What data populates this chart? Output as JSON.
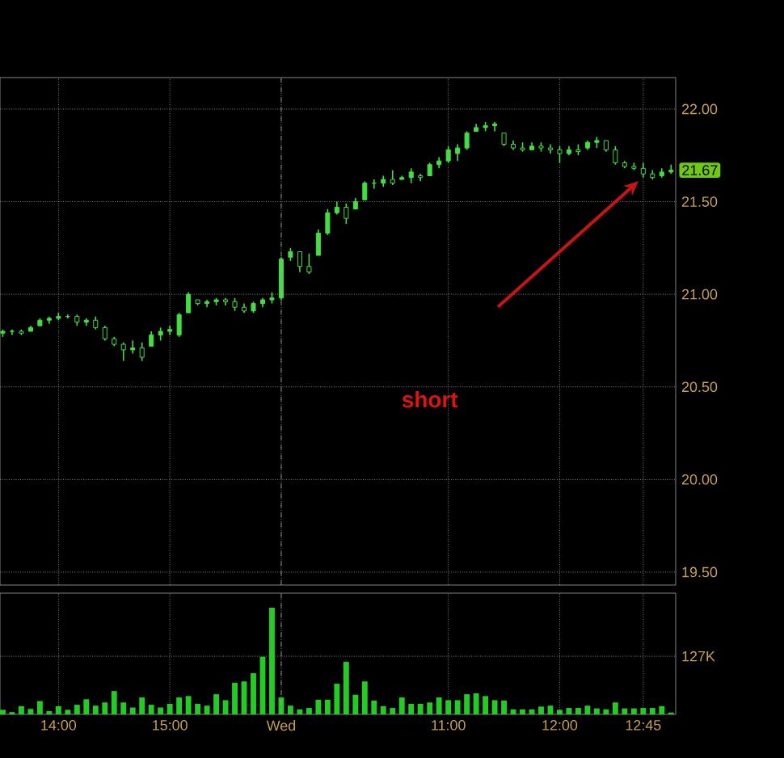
{
  "chart_data": [
    {
      "type": "candlestick",
      "color": "#44dd44",
      "categories": [
        null,
        null,
        null,
        null,
        null,
        null,
        "14:00",
        null,
        null,
        null,
        null,
        null,
        null,
        null,
        null,
        null,
        null,
        null,
        "15:00",
        null,
        null,
        null,
        null,
        null,
        null,
        null,
        null,
        null,
        null,
        null,
        "Wed",
        null,
        null,
        null,
        null,
        null,
        null,
        null,
        null,
        null,
        null,
        null,
        null,
        null,
        null,
        null,
        null,
        null,
        "11:00",
        null,
        null,
        null,
        null,
        null,
        null,
        null,
        null,
        null,
        null,
        null,
        "12:00",
        null,
        null,
        null,
        null,
        null,
        null,
        null,
        null,
        "12:45",
        null,
        null,
        null
      ],
      "ohlc": [
        [
          20.79,
          20.81,
          20.77,
          20.8
        ],
        [
          20.8,
          20.81,
          20.78,
          20.8
        ],
        [
          20.8,
          20.81,
          20.78,
          20.79
        ],
        [
          20.8,
          20.83,
          20.8,
          20.82
        ],
        [
          20.83,
          20.87,
          20.83,
          20.86
        ],
        [
          20.86,
          20.88,
          20.84,
          20.87
        ],
        [
          20.87,
          20.9,
          20.86,
          20.88
        ],
        [
          20.88,
          20.89,
          20.87,
          20.88
        ],
        [
          20.88,
          20.89,
          20.83,
          20.85
        ],
        [
          20.85,
          20.87,
          20.83,
          20.86
        ],
        [
          20.86,
          20.88,
          20.81,
          20.82
        ],
        [
          20.82,
          20.83,
          20.75,
          20.76
        ],
        [
          20.76,
          20.77,
          20.72,
          20.73
        ],
        [
          20.73,
          20.74,
          20.64,
          20.7
        ],
        [
          20.7,
          20.75,
          20.68,
          20.71
        ],
        [
          20.71,
          20.74,
          20.64,
          20.66
        ],
        [
          20.72,
          20.8,
          20.72,
          20.78
        ],
        [
          20.78,
          20.82,
          20.75,
          20.8
        ],
        [
          20.8,
          20.83,
          20.78,
          20.81
        ],
        [
          20.78,
          20.9,
          20.77,
          20.89
        ],
        [
          20.9,
          21.01,
          20.9,
          21.0
        ],
        [
          20.97,
          20.97,
          20.94,
          20.95
        ],
        [
          20.95,
          20.97,
          20.93,
          20.96
        ],
        [
          20.96,
          20.98,
          20.94,
          20.97
        ],
        [
          20.97,
          20.98,
          20.94,
          20.96
        ],
        [
          20.96,
          20.98,
          20.91,
          20.93
        ],
        [
          20.93,
          20.95,
          20.9,
          20.91
        ],
        [
          20.91,
          20.96,
          20.9,
          20.95
        ],
        [
          20.95,
          20.98,
          20.93,
          20.97
        ],
        [
          20.97,
          21.01,
          20.95,
          20.98
        ],
        [
          20.98,
          21.2,
          20.97,
          21.19
        ],
        [
          21.2,
          21.25,
          21.18,
          21.23
        ],
        [
          21.23,
          21.23,
          21.12,
          21.15
        ],
        [
          21.15,
          21.22,
          21.11,
          21.12
        ],
        [
          21.21,
          21.35,
          21.21,
          21.33
        ],
        [
          21.33,
          21.46,
          21.32,
          21.44
        ],
        [
          21.44,
          21.5,
          21.43,
          21.47
        ],
        [
          21.47,
          21.49,
          21.38,
          21.41
        ],
        [
          21.46,
          21.52,
          21.46,
          21.5
        ],
        [
          21.51,
          21.61,
          21.51,
          21.6
        ],
        [
          21.6,
          21.62,
          21.57,
          21.6
        ],
        [
          21.6,
          21.64,
          21.58,
          21.62
        ],
        [
          21.62,
          21.67,
          21.59,
          21.6
        ],
        [
          21.62,
          21.64,
          21.62,
          21.63
        ],
        [
          21.63,
          21.68,
          21.6,
          21.66
        ],
        [
          21.64,
          21.65,
          21.61,
          21.63
        ],
        [
          21.64,
          21.71,
          21.64,
          21.7
        ],
        [
          21.7,
          21.74,
          21.68,
          21.72
        ],
        [
          21.72,
          21.8,
          21.71,
          21.78
        ],
        [
          21.76,
          21.81,
          21.72,
          21.79
        ],
        [
          21.79,
          21.88,
          21.78,
          21.87
        ],
        [
          21.88,
          21.92,
          21.88,
          21.9
        ],
        [
          21.9,
          21.93,
          21.88,
          21.91
        ],
        [
          21.91,
          21.93,
          21.88,
          21.92
        ],
        [
          21.87,
          21.87,
          21.8,
          21.81
        ],
        [
          21.81,
          21.83,
          21.78,
          21.79
        ],
        [
          21.79,
          21.82,
          21.77,
          21.78
        ],
        [
          21.78,
          21.82,
          21.78,
          21.8
        ],
        [
          21.8,
          21.82,
          21.77,
          21.79
        ],
        [
          21.79,
          21.81,
          21.76,
          21.78
        ],
        [
          21.78,
          21.8,
          21.71,
          21.76
        ],
        [
          21.76,
          21.8,
          21.75,
          21.78
        ],
        [
          21.78,
          21.81,
          21.75,
          21.77
        ],
        [
          21.79,
          21.83,
          21.78,
          21.82
        ],
        [
          21.82,
          21.85,
          21.79,
          21.83
        ],
        [
          21.83,
          21.83,
          21.77,
          21.78
        ],
        [
          21.78,
          21.8,
          21.7,
          21.71
        ],
        [
          21.71,
          21.72,
          21.68,
          21.69
        ],
        [
          21.69,
          21.71,
          21.67,
          21.68
        ],
        [
          21.68,
          21.71,
          21.63,
          21.65
        ],
        [
          21.65,
          21.67,
          21.62,
          21.63
        ],
        [
          21.64,
          21.68,
          21.63,
          21.66
        ],
        [
          21.66,
          21.7,
          21.65,
          21.67
        ]
      ],
      "ylim": [
        19.43,
        22.17
      ],
      "yticks": [
        {
          "value": 19.5,
          "label": "19.50"
        },
        {
          "value": 20,
          "label": "20.00"
        },
        {
          "value": 20.5,
          "label": "20.50"
        },
        {
          "value": 21,
          "label": "21.00"
        },
        {
          "value": 21.5,
          "label": "21.50"
        },
        {
          "value": 22,
          "label": "22.00"
        }
      ],
      "tick_labels": "y",
      "grid": true,
      "ref_lines": [
        {
          "axis": "x",
          "value": "Wed",
          "color": "#a0a0a0",
          "line_style": "dashed"
        }
      ],
      "annotations": [
        "short",
        {
          "text": "21.67",
          "y": 21.67
        }
      ]
    },
    {
      "type": "bar",
      "color": "#22cc22",
      "categories": [
        null,
        null,
        null,
        null,
        null,
        null,
        "14:00",
        null,
        null,
        null,
        null,
        null,
        null,
        null,
        null,
        null,
        null,
        null,
        "15:00",
        null,
        null,
        null,
        null,
        null,
        null,
        null,
        null,
        null,
        null,
        null,
        "Wed",
        null,
        null,
        null,
        null,
        null,
        null,
        null,
        null,
        null,
        null,
        null,
        null,
        null,
        null,
        null,
        null,
        null,
        "11:00",
        null,
        null,
        null,
        null,
        null,
        null,
        null,
        null,
        null,
        null,
        null,
        "12:00",
        null,
        null,
        null,
        null,
        null,
        null,
        null,
        null,
        "12:45",
        null,
        null,
        null
      ],
      "values": [
        10,
        5,
        18,
        12,
        29,
        7,
        18,
        10,
        21,
        33,
        19,
        26,
        51,
        26,
        15,
        37,
        21,
        15,
        23,
        37,
        40,
        23,
        19,
        44,
        31,
        69,
        72,
        90,
        126,
        233,
        37,
        19,
        11,
        14,
        32,
        32,
        67,
        115,
        43,
        72,
        30,
        18,
        14,
        37,
        23,
        23,
        26,
        37,
        31,
        31,
        44,
        46,
        40,
        31,
        30,
        11,
        11,
        11,
        17,
        19,
        10,
        14,
        14,
        19,
        13,
        11,
        26,
        13,
        13,
        14,
        14,
        18,
        4
      ],
      "ylim": [
        0,
        265
      ],
      "yticks": [
        {
          "value": 127,
          "label": "127K"
        }
      ],
      "grid": true,
      "ref_lines": [
        {
          "axis": "x",
          "value": "Wed",
          "color": "#a0a0a0",
          "line_style": "dashed"
        }
      ]
    }
  ]
}
